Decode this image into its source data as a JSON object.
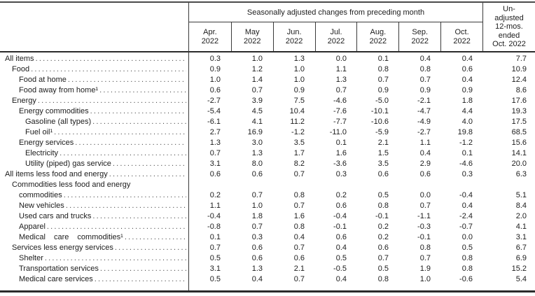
{
  "header": {
    "group_title": "Seasonally adjusted changes from preceding month",
    "months": [
      {
        "month": "Apr.",
        "year": "2022"
      },
      {
        "month": "May",
        "year": "2022"
      },
      {
        "month": "Jun.",
        "year": "2022"
      },
      {
        "month": "Jul.",
        "year": "2022"
      },
      {
        "month": "Aug.",
        "year": "2022"
      },
      {
        "month": "Sep.",
        "year": "2022"
      },
      {
        "month": "Oct.",
        "year": "2022"
      }
    ],
    "unadjusted_lines": [
      "Un-",
      "adjusted",
      "12-mos.",
      "ended",
      "Oct. 2022"
    ]
  },
  "table": {
    "rows": [
      {
        "label": "All items",
        "indent": 0,
        "monthly": [
          "0.3",
          "1.0",
          "1.3",
          "0.0",
          "0.1",
          "0.4",
          "0.4"
        ],
        "yr12": "7.7"
      },
      {
        "label": "Food",
        "indent": 1,
        "monthly": [
          "0.9",
          "1.2",
          "1.0",
          "1.1",
          "0.8",
          "0.8",
          "0.6"
        ],
        "yr12": "10.9"
      },
      {
        "label": "Food at home",
        "indent": 2,
        "monthly": [
          "1.0",
          "1.4",
          "1.0",
          "1.3",
          "0.7",
          "0.7",
          "0.4"
        ],
        "yr12": "12.4"
      },
      {
        "label": "Food away from home¹",
        "indent": 2,
        "monthly": [
          "0.6",
          "0.7",
          "0.9",
          "0.7",
          "0.9",
          "0.9",
          "0.9"
        ],
        "yr12": "8.6"
      },
      {
        "label": "Energy",
        "indent": 1,
        "monthly": [
          "-2.7",
          "3.9",
          "7.5",
          "-4.6",
          "-5.0",
          "-2.1",
          "1.8"
        ],
        "yr12": "17.6"
      },
      {
        "label": "Energy commodities",
        "indent": 2,
        "monthly": [
          "-5.4",
          "4.5",
          "10.4",
          "-7.6",
          "-10.1",
          "-4.7",
          "4.4"
        ],
        "yr12": "19.3"
      },
      {
        "label": "Gasoline (all types)",
        "indent": 3,
        "monthly": [
          "-6.1",
          "4.1",
          "11.2",
          "-7.7",
          "-10.6",
          "-4.9",
          "4.0"
        ],
        "yr12": "17.5"
      },
      {
        "label": "Fuel oil¹",
        "indent": 3,
        "monthly": [
          "2.7",
          "16.9",
          "-1.2",
          "-11.0",
          "-5.9",
          "-2.7",
          "19.8"
        ],
        "yr12": "68.5"
      },
      {
        "label": "Energy services",
        "indent": 2,
        "monthly": [
          "1.3",
          "3.0",
          "3.5",
          "0.1",
          "2.1",
          "1.1",
          "-1.2"
        ],
        "yr12": "15.6"
      },
      {
        "label": "Electricity",
        "indent": 3,
        "monthly": [
          "0.7",
          "1.3",
          "1.7",
          "1.6",
          "1.5",
          "0.4",
          "0.1"
        ],
        "yr12": "14.1"
      },
      {
        "label": "Utility (piped) gas service",
        "indent": 3,
        "monthly": [
          "3.1",
          "8.0",
          "8.2",
          "-3.6",
          "3.5",
          "2.9",
          "-4.6"
        ],
        "yr12": "20.0"
      },
      {
        "label": "All items less food and energy",
        "indent": 0,
        "monthly": [
          "0.6",
          "0.6",
          "0.7",
          "0.3",
          "0.6",
          "0.6",
          "0.3"
        ],
        "yr12": "6.3"
      },
      {
        "label": "Commodities less food and energy",
        "label2": "commodities",
        "indent": 1,
        "monthly": [
          "0.2",
          "0.7",
          "0.8",
          "0.2",
          "0.5",
          "0.0",
          "-0.4"
        ],
        "yr12": "5.1"
      },
      {
        "label": "New vehicles",
        "indent": 2,
        "monthly": [
          "1.1",
          "1.0",
          "0.7",
          "0.6",
          "0.8",
          "0.7",
          "0.4"
        ],
        "yr12": "8.4"
      },
      {
        "label": "Used cars and trucks",
        "indent": 2,
        "monthly": [
          "-0.4",
          "1.8",
          "1.6",
          "-0.4",
          "-0.1",
          "-1.1",
          "-2.4"
        ],
        "yr12": "2.0"
      },
      {
        "label": "Apparel",
        "indent": 2,
        "monthly": [
          "-0.8",
          "0.7",
          "0.8",
          "-0.1",
          "0.2",
          "-0.3",
          "-0.7"
        ],
        "yr12": "4.1"
      },
      {
        "label": "Medical care commodities¹",
        "indent": 2,
        "spread": true,
        "monthly": [
          "0.1",
          "0.3",
          "0.4",
          "0.6",
          "0.2",
          "-0.1",
          "0.0"
        ],
        "yr12": "3.1"
      },
      {
        "label": "Services less energy services",
        "indent": 1,
        "monthly": [
          "0.7",
          "0.6",
          "0.7",
          "0.4",
          "0.6",
          "0.8",
          "0.5"
        ],
        "yr12": "6.7"
      },
      {
        "label": "Shelter",
        "indent": 2,
        "monthly": [
          "0.5",
          "0.6",
          "0.6",
          "0.5",
          "0.7",
          "0.7",
          "0.8"
        ],
        "yr12": "6.9"
      },
      {
        "label": "Transportation services",
        "indent": 2,
        "monthly": [
          "3.1",
          "1.3",
          "2.1",
          "-0.5",
          "0.5",
          "1.9",
          "0.8"
        ],
        "yr12": "15.2"
      },
      {
        "label": "Medical care services",
        "indent": 2,
        "monthly": [
          "0.5",
          "0.4",
          "0.7",
          "0.4",
          "0.8",
          "1.0",
          "-0.6"
        ],
        "yr12": "5.4"
      }
    ]
  }
}
